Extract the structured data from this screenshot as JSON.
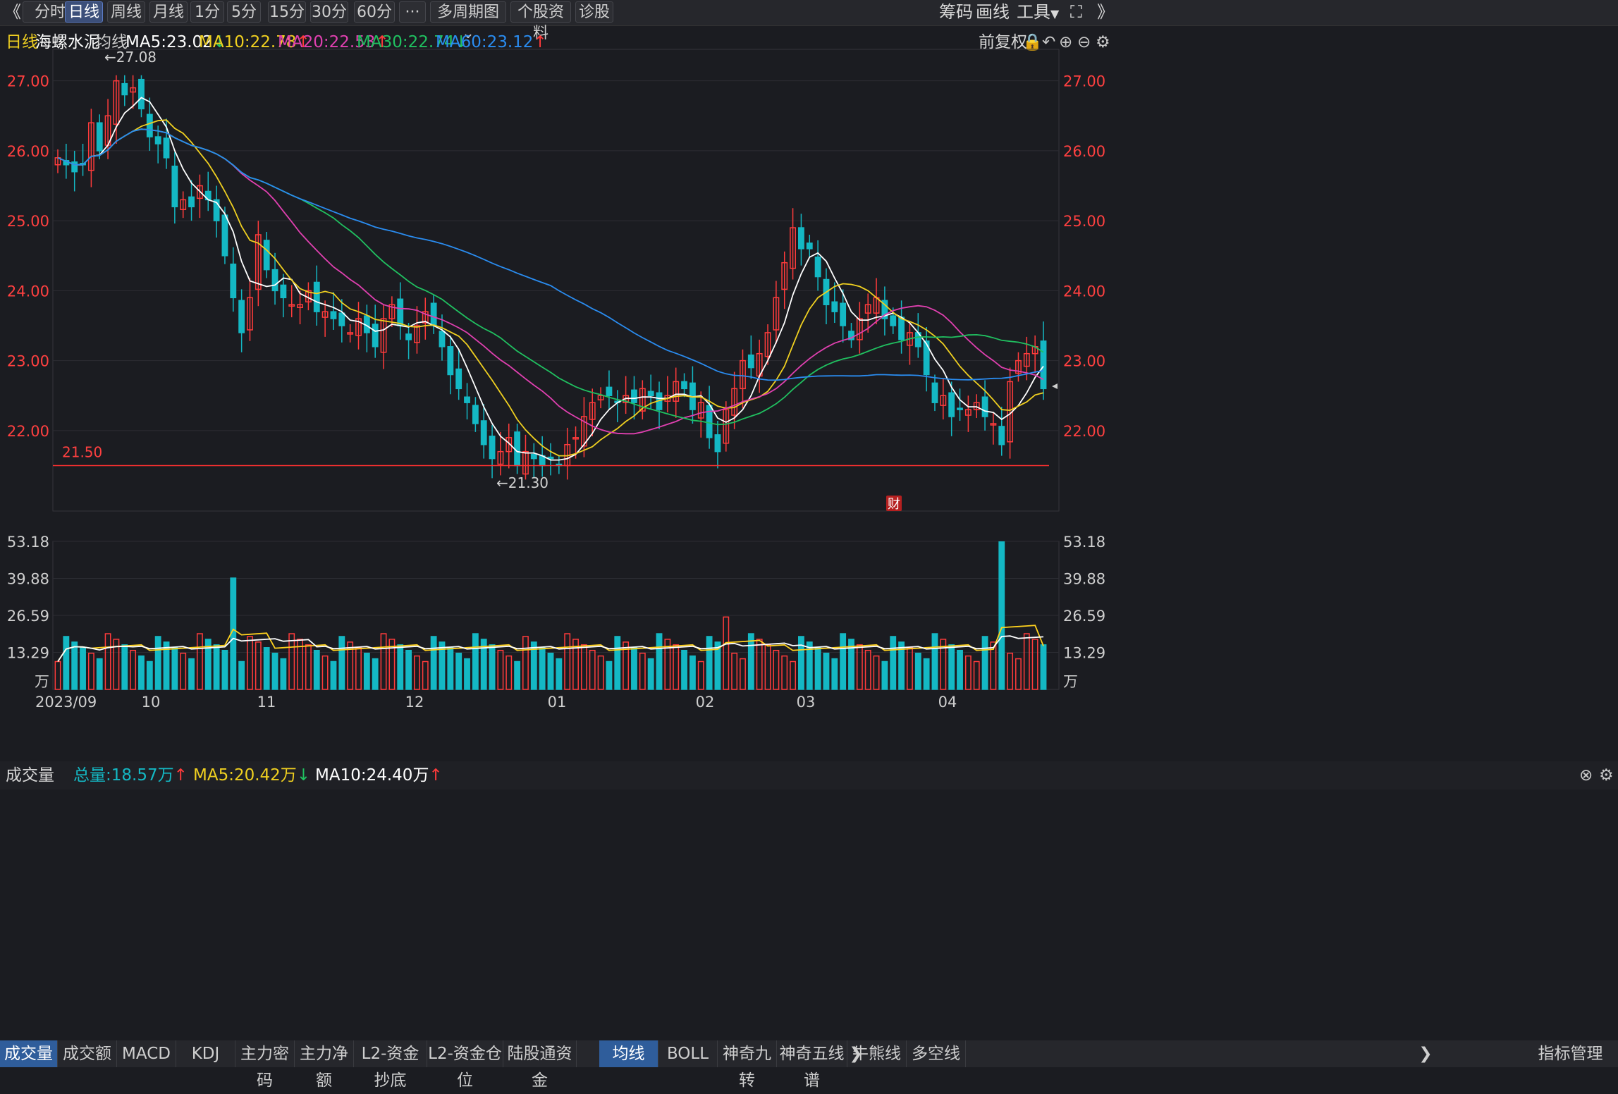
{
  "toolbar": {
    "back_glyph": "《",
    "periods": [
      "分时",
      "日线",
      "周线",
      "月线",
      "1分",
      "5分",
      "15分",
      "30分",
      "60分",
      "···"
    ],
    "active_period": "日线",
    "multi_period": "多周期图",
    "stock_info": "个股资料",
    "diagnose": "诊股",
    "right_items": [
      "筹码",
      "画线",
      "工具"
    ],
    "more_glyph": "》"
  },
  "info": {
    "period_label": "日线",
    "stock_name": "海螺水泥",
    "ma_title": "均线",
    "ma5": "MA5:23.02",
    "ma10": "MA10:22.78",
    "ma20": "MA20:22.53",
    "ma30": "MA30:22.74",
    "ma60": "MA60:23.12",
    "adjust": "前复权"
  },
  "price_axis": {
    "ticks": [
      "27.00",
      "26.00",
      "25.00",
      "24.00",
      "23.00",
      "22.00"
    ],
    "min": 20.85,
    "max": 27.45
  },
  "annotations": {
    "high": "←27.08",
    "low": "←21.30",
    "line_value": "21.50",
    "badge": "财"
  },
  "volume_header": {
    "title": "成交量",
    "total": "总量:18.57万",
    "ma5": "MA5:20.42万",
    "ma10": "MA10:24.40万"
  },
  "volume_axis": {
    "ticks": [
      "53.18",
      "39.88",
      "26.59",
      "13.29"
    ],
    "unit": "万",
    "max": 53.18
  },
  "x_axis": [
    "2023/09",
    "10",
    "11",
    "12",
    "01",
    "02",
    "03",
    "04"
  ],
  "bottom_tabs": {
    "left": [
      "成交量",
      "成交额",
      "MACD",
      "KDJ",
      "主力密码",
      "主力净额",
      "L2-资金抄底",
      "L2-资金仓位",
      "陆股通资金"
    ],
    "right": [
      "均线",
      "BOLL",
      "神奇九转",
      "神奇五线谱",
      "牛熊线",
      "多空线"
    ],
    "manage": "指标管理"
  },
  "colors": {
    "up": "#ff3b3b",
    "down": "#14b8c4",
    "ma5": "#ffffff",
    "ma10": "#f0d020",
    "ma20": "#e040b0",
    "ma30": "#20c060",
    "ma60": "#2a8cf0",
    "axis_red": "#ff4040"
  },
  "chart_data": {
    "type": "candlestick",
    "x_labels": [
      "2023/09",
      "10",
      "11",
      "12",
      "01",
      "02",
      "03",
      "04"
    ],
    "price_range": [
      20.85,
      27.45
    ],
    "high_marker": 27.08,
    "low_marker": 21.3,
    "support_line": 21.5,
    "close": [
      25.9,
      25.8,
      25.7,
      25.8,
      26.4,
      26.0,
      26.5,
      27.0,
      26.8,
      26.9,
      26.6,
      26.2,
      26.1,
      25.9,
      25.2,
      25.3,
      25.2,
      25.5,
      25.3,
      25.0,
      24.5,
      23.9,
      23.4,
      23.9,
      24.8,
      24.3,
      24.0,
      23.9,
      23.8,
      23.8,
      24.0,
      23.7,
      23.7,
      23.6,
      23.5,
      23.4,
      23.6,
      23.4,
      23.2,
      23.6,
      23.8,
      23.5,
      23.3,
      23.5,
      23.7,
      23.5,
      23.2,
      22.8,
      22.6,
      22.4,
      22.1,
      21.8,
      21.6,
      21.7,
      21.9,
      21.5,
      21.7,
      21.6,
      21.5,
      21.6,
      21.5,
      21.8,
      21.9,
      22.2,
      22.4,
      22.5,
      22.5,
      22.4,
      22.5,
      22.4,
      22.6,
      22.5,
      22.3,
      22.5,
      22.7,
      22.6,
      22.3,
      22.4,
      21.9,
      21.7,
      22.3,
      22.6,
      23.0,
      22.9,
      23.1,
      23.4,
      23.9,
      24.4,
      24.9,
      24.6,
      24.6,
      24.2,
      23.8,
      23.7,
      23.5,
      23.3,
      23.6,
      23.8,
      23.9,
      23.6,
      23.5,
      23.3,
      23.4,
      23.2,
      22.8,
      22.4,
      22.5,
      22.2,
      22.3,
      22.3,
      22.4,
      22.2,
      22.1,
      21.8,
      22.7,
      23.0,
      23.1,
      23.2,
      22.6
    ],
    "volume_ma5_last": 20.42,
    "volume_ma10_last": 24.4,
    "volume_total_last": 18.57
  }
}
